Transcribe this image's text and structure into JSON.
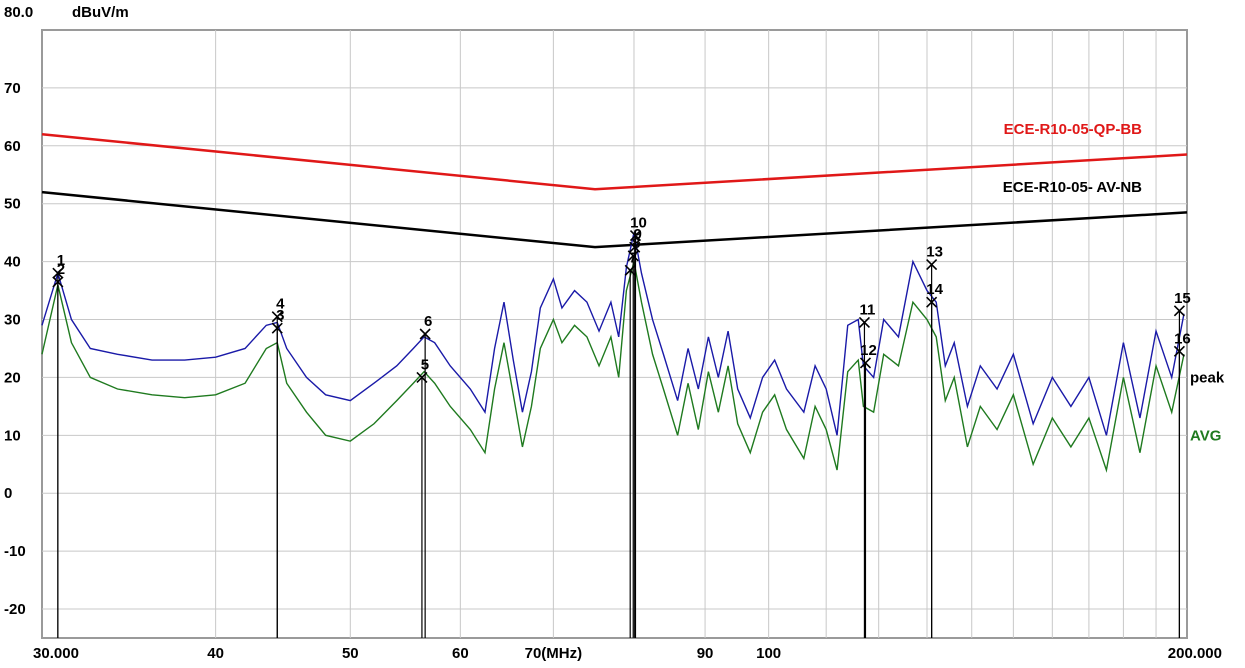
{
  "chart_data": {
    "type": "line",
    "title": "",
    "xlabel": "(MHz)",
    "ylabel": "dBuV/m",
    "x_scale": "log",
    "xlim": [
      30,
      200
    ],
    "ylim": [
      -25,
      80
    ],
    "y_top_label": "80.0",
    "y_unit_label": "dBuV/m",
    "grid": true,
    "x_tick_labels": [
      {
        "x": 30,
        "label": "30.000"
      },
      {
        "x": 40,
        "label": "40"
      },
      {
        "x": 50,
        "label": "50"
      },
      {
        "x": 60,
        "label": "60"
      },
      {
        "x": 70,
        "label": "70(MHz)"
      },
      {
        "x": 90,
        "label": "90"
      },
      {
        "x": 100,
        "label": "100"
      },
      {
        "x": 200,
        "label": "200.000"
      }
    ],
    "y_tick_labels": [
      {
        "y": 70,
        "label": "70"
      },
      {
        "y": 60,
        "label": "60"
      },
      {
        "y": 50,
        "label": "50"
      },
      {
        "y": 40,
        "label": "40"
      },
      {
        "y": 30,
        "label": "30"
      },
      {
        "y": 20,
        "label": "20"
      },
      {
        "y": 10,
        "label": "10"
      },
      {
        "y": 0,
        "label": "0"
      },
      {
        "y": -10,
        "label": "-10"
      },
      {
        "y": -20,
        "label": "-20"
      }
    ],
    "limit_lines": [
      {
        "name": "ECE-R10-05-QP-BB",
        "color": "#e01818",
        "points": [
          [
            30,
            62
          ],
          [
            75,
            52.5
          ],
          [
            200,
            58.5
          ]
        ]
      },
      {
        "name": "ECE-R10-05- AV-NB",
        "color": "#000000",
        "points": [
          [
            30,
            52
          ],
          [
            75,
            42.5
          ],
          [
            200,
            48.5
          ]
        ]
      }
    ],
    "series": [
      {
        "name": "peak",
        "color": "#1a1aa8",
        "points": [
          [
            30,
            29
          ],
          [
            30.8,
            38
          ],
          [
            31.5,
            30
          ],
          [
            32.5,
            25
          ],
          [
            34,
            24
          ],
          [
            36,
            23
          ],
          [
            38,
            23
          ],
          [
            40,
            23.5
          ],
          [
            42,
            25
          ],
          [
            43.5,
            29
          ],
          [
            44.3,
            29.5
          ],
          [
            45,
            25
          ],
          [
            46.5,
            20
          ],
          [
            48,
            17
          ],
          [
            50,
            16
          ],
          [
            52,
            19
          ],
          [
            54,
            22
          ],
          [
            55.5,
            25
          ],
          [
            56.5,
            27
          ],
          [
            57.5,
            26
          ],
          [
            59,
            22
          ],
          [
            61,
            18
          ],
          [
            62.5,
            14
          ],
          [
            63.5,
            25
          ],
          [
            64.5,
            33
          ],
          [
            65.5,
            23
          ],
          [
            66.5,
            14
          ],
          [
            67.5,
            21
          ],
          [
            68.5,
            32
          ],
          [
            70,
            37
          ],
          [
            71,
            32
          ],
          [
            72.5,
            35
          ],
          [
            74,
            33
          ],
          [
            75.5,
            28
          ],
          [
            77,
            33
          ],
          [
            78,
            27
          ],
          [
            79,
            39
          ],
          [
            80,
            45
          ],
          [
            81,
            38
          ],
          [
            82.5,
            30
          ],
          [
            84,
            24
          ],
          [
            86,
            16
          ],
          [
            87.5,
            25
          ],
          [
            89,
            18
          ],
          [
            90.5,
            27
          ],
          [
            92,
            20
          ],
          [
            93.5,
            28
          ],
          [
            95,
            18
          ],
          [
            97,
            13
          ],
          [
            99,
            20
          ],
          [
            101,
            23
          ],
          [
            103,
            18
          ],
          [
            106,
            14
          ],
          [
            108,
            22
          ],
          [
            110,
            18
          ],
          [
            112,
            10
          ],
          [
            114,
            29
          ],
          [
            116,
            30
          ],
          [
            117,
            22
          ],
          [
            119,
            20
          ],
          [
            121,
            30
          ],
          [
            124,
            27
          ],
          [
            127,
            40
          ],
          [
            130,
            35
          ],
          [
            132,
            33
          ],
          [
            134,
            22
          ],
          [
            136,
            26
          ],
          [
            139,
            15
          ],
          [
            142,
            22
          ],
          [
            146,
            18
          ],
          [
            150,
            24
          ],
          [
            155,
            12
          ],
          [
            160,
            20
          ],
          [
            165,
            15
          ],
          [
            170,
            20
          ],
          [
            175,
            10
          ],
          [
            180,
            26
          ],
          [
            185,
            13
          ],
          [
            190,
            28
          ],
          [
            195,
            20
          ],
          [
            199,
            31
          ],
          [
            202,
            17
          ]
        ]
      },
      {
        "name": "AVG",
        "color": "#1f7a1f",
        "points": [
          [
            30,
            24
          ],
          [
            30.8,
            36
          ],
          [
            31.5,
            26
          ],
          [
            32.5,
            20
          ],
          [
            34,
            18
          ],
          [
            36,
            17
          ],
          [
            38,
            16.5
          ],
          [
            40,
            17
          ],
          [
            42,
            19
          ],
          [
            43.5,
            25
          ],
          [
            44.3,
            26
          ],
          [
            45,
            19
          ],
          [
            46.5,
            14
          ],
          [
            48,
            10
          ],
          [
            50,
            9
          ],
          [
            52,
            12
          ],
          [
            54,
            16
          ],
          [
            55.5,
            19
          ],
          [
            56.5,
            21
          ],
          [
            57.5,
            19
          ],
          [
            59,
            15
          ],
          [
            61,
            11
          ],
          [
            62.5,
            7
          ],
          [
            63.5,
            18
          ],
          [
            64.5,
            26
          ],
          [
            65.5,
            17
          ],
          [
            66.5,
            8
          ],
          [
            67.5,
            15
          ],
          [
            68.5,
            25
          ],
          [
            70,
            30
          ],
          [
            71,
            26
          ],
          [
            72.5,
            29
          ],
          [
            74,
            27
          ],
          [
            75.5,
            22
          ],
          [
            77,
            27
          ],
          [
            78,
            20
          ],
          [
            79,
            35
          ],
          [
            80,
            40
          ],
          [
            81,
            33
          ],
          [
            82.5,
            24
          ],
          [
            84,
            18
          ],
          [
            86,
            10
          ],
          [
            87.5,
            19
          ],
          [
            89,
            11
          ],
          [
            90.5,
            21
          ],
          [
            92,
            14
          ],
          [
            93.5,
            22
          ],
          [
            95,
            12
          ],
          [
            97,
            7
          ],
          [
            99,
            14
          ],
          [
            101,
            17
          ],
          [
            103,
            11
          ],
          [
            106,
            6
          ],
          [
            108,
            15
          ],
          [
            110,
            11
          ],
          [
            112,
            4
          ],
          [
            114,
            21
          ],
          [
            116,
            23
          ],
          [
            117,
            15
          ],
          [
            119,
            14
          ],
          [
            121,
            24
          ],
          [
            124,
            22
          ],
          [
            127,
            33
          ],
          [
            130,
            30
          ],
          [
            132,
            27
          ],
          [
            134,
            16
          ],
          [
            136,
            20
          ],
          [
            139,
            8
          ],
          [
            142,
            15
          ],
          [
            146,
            11
          ],
          [
            150,
            17
          ],
          [
            155,
            5
          ],
          [
            160,
            13
          ],
          [
            165,
            8
          ],
          [
            170,
            13
          ],
          [
            175,
            4
          ],
          [
            180,
            20
          ],
          [
            185,
            7
          ],
          [
            190,
            22
          ],
          [
            195,
            14
          ],
          [
            199,
            24
          ],
          [
            202,
            10
          ]
        ]
      }
    ],
    "markers": [
      {
        "label": "1",
        "x": 30.8,
        "y": 38
      },
      {
        "label": "2",
        "x": 30.8,
        "y": 36.5
      },
      {
        "label": "3",
        "x": 44.3,
        "y": 28.5
      },
      {
        "label": "4",
        "x": 44.3,
        "y": 30.5
      },
      {
        "label": "5",
        "x": 56.3,
        "y": 20
      },
      {
        "label": "6",
        "x": 56.6,
        "y": 27.5
      },
      {
        "label": "7",
        "x": 79.5,
        "y": 38.5
      },
      {
        "label": "8",
        "x": 79.9,
        "y": 41
      },
      {
        "label": "9",
        "x": 80.1,
        "y": 42.5
      },
      {
        "label": "10",
        "x": 80.2,
        "y": 44.5
      },
      {
        "label": "11",
        "x": 117.2,
        "y": 29.5
      },
      {
        "label": "12",
        "x": 117.4,
        "y": 22.5
      },
      {
        "label": "13",
        "x": 131,
        "y": 39.5
      },
      {
        "label": "14",
        "x": 131,
        "y": 33
      },
      {
        "label": "15",
        "x": 197.5,
        "y": 31.5
      },
      {
        "label": "16",
        "x": 197.5,
        "y": 24.5
      }
    ]
  }
}
